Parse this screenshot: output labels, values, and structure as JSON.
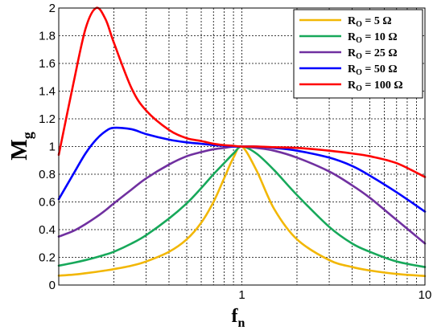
{
  "chart_data": {
    "type": "line",
    "xscale": "log",
    "xlim": [
      0.1,
      10
    ],
    "ylim": [
      0,
      2
    ],
    "grid": true,
    "legend_position": "top-right",
    "xlabel_main": "f",
    "xlabel_sub": "n",
    "ylabel_main": "M",
    "ylabel_sub": "g",
    "x_tick_labels": [
      {
        "value": 1,
        "label": "1"
      },
      {
        "value": 10,
        "label": "10"
      }
    ],
    "y_tick_labels": [
      {
        "value": 0,
        "label": "0"
      },
      {
        "value": 0.2,
        "label": "0.2"
      },
      {
        "value": 0.4,
        "label": "0.4"
      },
      {
        "value": 0.6,
        "label": "0.6"
      },
      {
        "value": 0.8,
        "label": "0.8"
      },
      {
        "value": 1,
        "label": "1"
      },
      {
        "value": 1.2,
        "label": "1.2"
      },
      {
        "value": 1.4,
        "label": "1.4"
      },
      {
        "value": 1.6,
        "label": "1.6"
      },
      {
        "value": 1.8,
        "label": "1.8"
      },
      {
        "value": 2,
        "label": "2"
      }
    ],
    "x": [
      0.1,
      0.12,
      0.14,
      0.16,
      0.18,
      0.2,
      0.25,
      0.3,
      0.4,
      0.5,
      0.6,
      0.7,
      0.8,
      0.9,
      1.0,
      1.2,
      1.5,
      2,
      3,
      4,
      5,
      7,
      10
    ],
    "series": [
      {
        "legend_main": "R",
        "legend_sub": "O",
        "legend_value": " = 5 Ω",
        "color": "#f2b705",
        "values": [
          0.068,
          0.075,
          0.085,
          0.095,
          0.105,
          0.115,
          0.14,
          0.17,
          0.24,
          0.33,
          0.45,
          0.6,
          0.77,
          0.92,
          1.0,
          0.83,
          0.55,
          0.33,
          0.18,
          0.13,
          0.105,
          0.08,
          0.065
        ]
      },
      {
        "legend_main": "R",
        "legend_sub": "O",
        "legend_value": " = 10 Ω",
        "color": "#17a85a",
        "values": [
          0.14,
          0.16,
          0.18,
          0.2,
          0.22,
          0.24,
          0.3,
          0.36,
          0.48,
          0.59,
          0.7,
          0.8,
          0.88,
          0.95,
          1.0,
          0.95,
          0.83,
          0.65,
          0.42,
          0.3,
          0.24,
          0.17,
          0.13
        ]
      },
      {
        "legend_main": "R",
        "legend_sub": "O",
        "legend_value": " = 25 Ω",
        "color": "#7030a0",
        "values": [
          0.35,
          0.39,
          0.44,
          0.49,
          0.54,
          0.59,
          0.69,
          0.77,
          0.87,
          0.93,
          0.96,
          0.98,
          0.99,
          1.0,
          1.0,
          0.99,
          0.97,
          0.92,
          0.82,
          0.72,
          0.63,
          0.47,
          0.3
        ]
      },
      {
        "legend_main": "R",
        "legend_sub": "O",
        "legend_value": " = 50 Ω",
        "color": "#0000ff",
        "values": [
          0.62,
          0.8,
          0.95,
          1.05,
          1.11,
          1.135,
          1.125,
          1.09,
          1.05,
          1.03,
          1.02,
          1.01,
          1.005,
          1.0,
          1.0,
          1.0,
          0.99,
          0.97,
          0.92,
          0.86,
          0.79,
          0.67,
          0.53
        ]
      },
      {
        "legend_main": "R",
        "legend_sub": "O",
        "legend_value": " = 100 Ω",
        "color": "#ff0000",
        "values": [
          0.94,
          1.45,
          1.85,
          2.0,
          1.92,
          1.75,
          1.42,
          1.26,
          1.12,
          1.06,
          1.04,
          1.02,
          1.01,
          1.005,
          1.0,
          1.0,
          0.995,
          0.99,
          0.97,
          0.95,
          0.93,
          0.88,
          0.78
        ]
      }
    ]
  }
}
